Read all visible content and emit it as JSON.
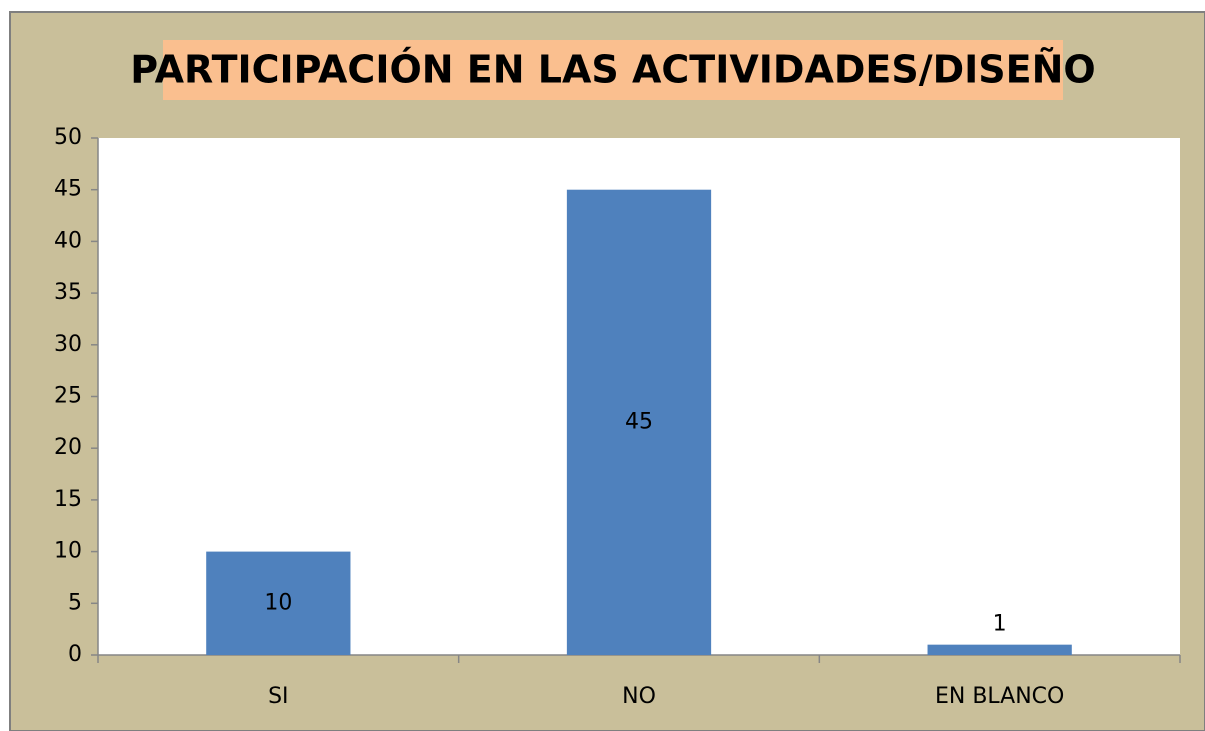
{
  "chart_data": {
    "type": "bar",
    "title": "PARTICIPACIÓN EN LAS ACTIVIDADES/DISEÑO",
    "categories": [
      "SI",
      "NO",
      "EN BLANCO"
    ],
    "values": [
      10,
      45,
      1
    ],
    "color": "#4f81bd",
    "ylim": [
      0,
      50
    ],
    "yticks": [
      0,
      5,
      10,
      15,
      20,
      25,
      30,
      35,
      40,
      45,
      50
    ],
    "grid": false,
    "data_labels": true
  }
}
